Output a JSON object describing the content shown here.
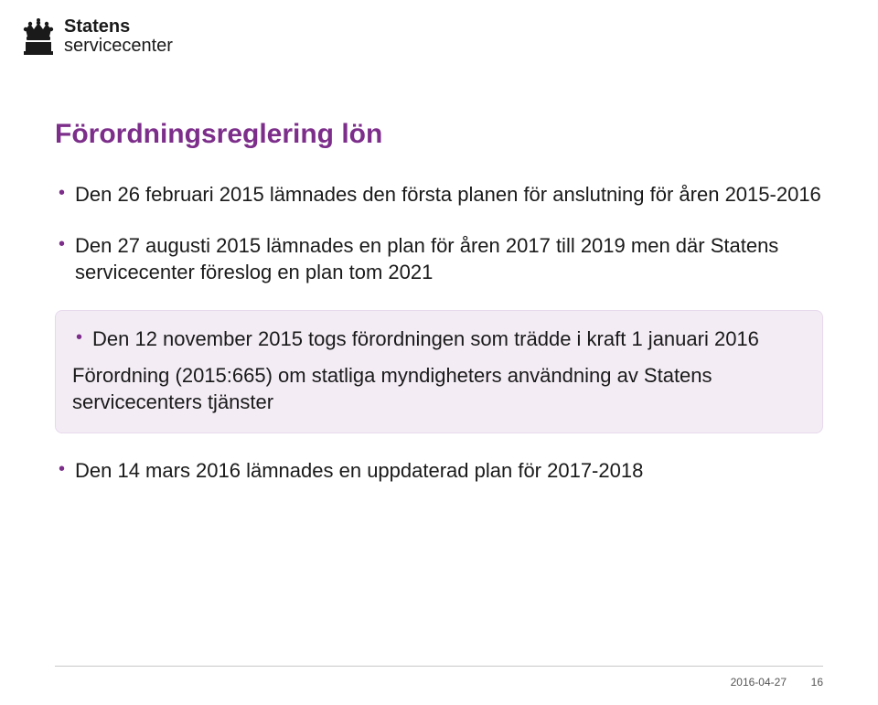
{
  "logo": {
    "line1": "Statens",
    "line2": "servicecenter"
  },
  "title": "Förordningsreglering lön",
  "title_color": "#7c2e8a",
  "bullets": [
    "Den 26 februari 2015 lämnades den första planen för anslutning för åren 2015-2016",
    "Den 27 augusti 2015 lämnades en plan för åren 2017 till 2019 men där Statens servicecenter föreslog en plan tom 2021"
  ],
  "highlight": {
    "bullet": "Den 12 november 2015 togs förordningen som trädde i kraft 1 januari 2016",
    "subline": "Förordning (2015:665) om statliga myndigheters användning av Statens servicecenters tjänster",
    "bg_color": "#f3ecf5",
    "border_color": "#e6d9ec",
    "bullet_color": "#7c2e8a"
  },
  "bullets_after": [
    "Den 14 mars 2016 lämnades en uppdaterad plan för 2017-2018"
  ],
  "bullet_color": "#7c2e8a",
  "text_color": "#1a1a1a",
  "footer": {
    "date": "2016-04-27",
    "page": "16"
  }
}
